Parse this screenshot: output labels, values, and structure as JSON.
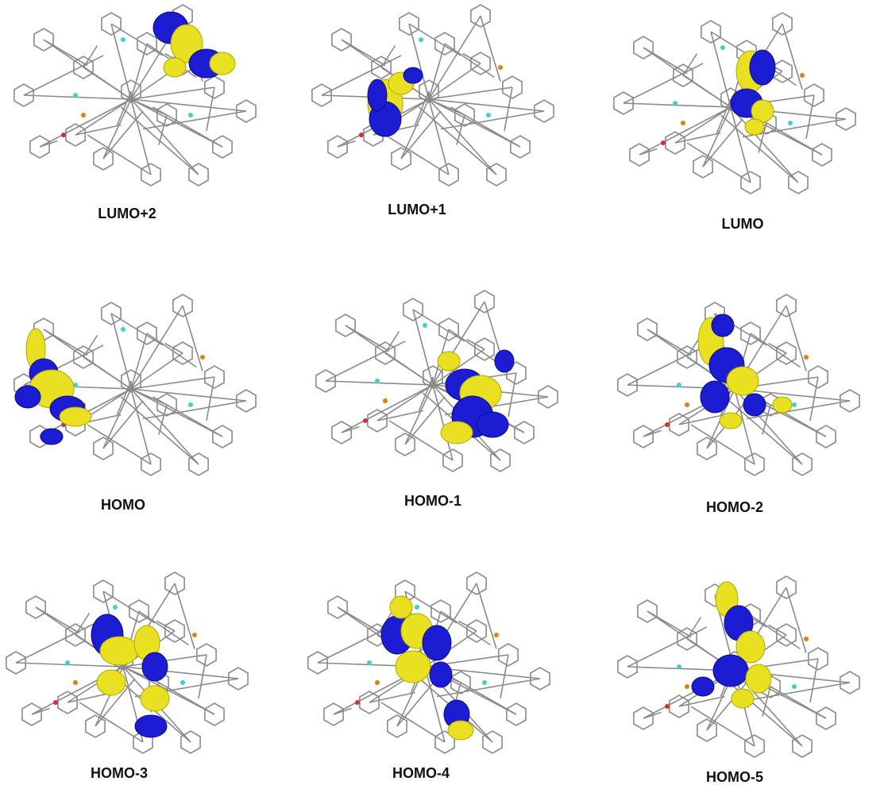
{
  "panels": [
    {
      "label": "LUMO+2"
    },
    {
      "label": "LUMO+1"
    },
    {
      "label": "LUMO"
    },
    {
      "label": "HOMO"
    },
    {
      "label": "HOMO-1"
    },
    {
      "label": "HOMO-2"
    },
    {
      "label": "HOMO-3"
    },
    {
      "label": "HOMO-4"
    },
    {
      "label": "HOMO-5"
    }
  ]
}
